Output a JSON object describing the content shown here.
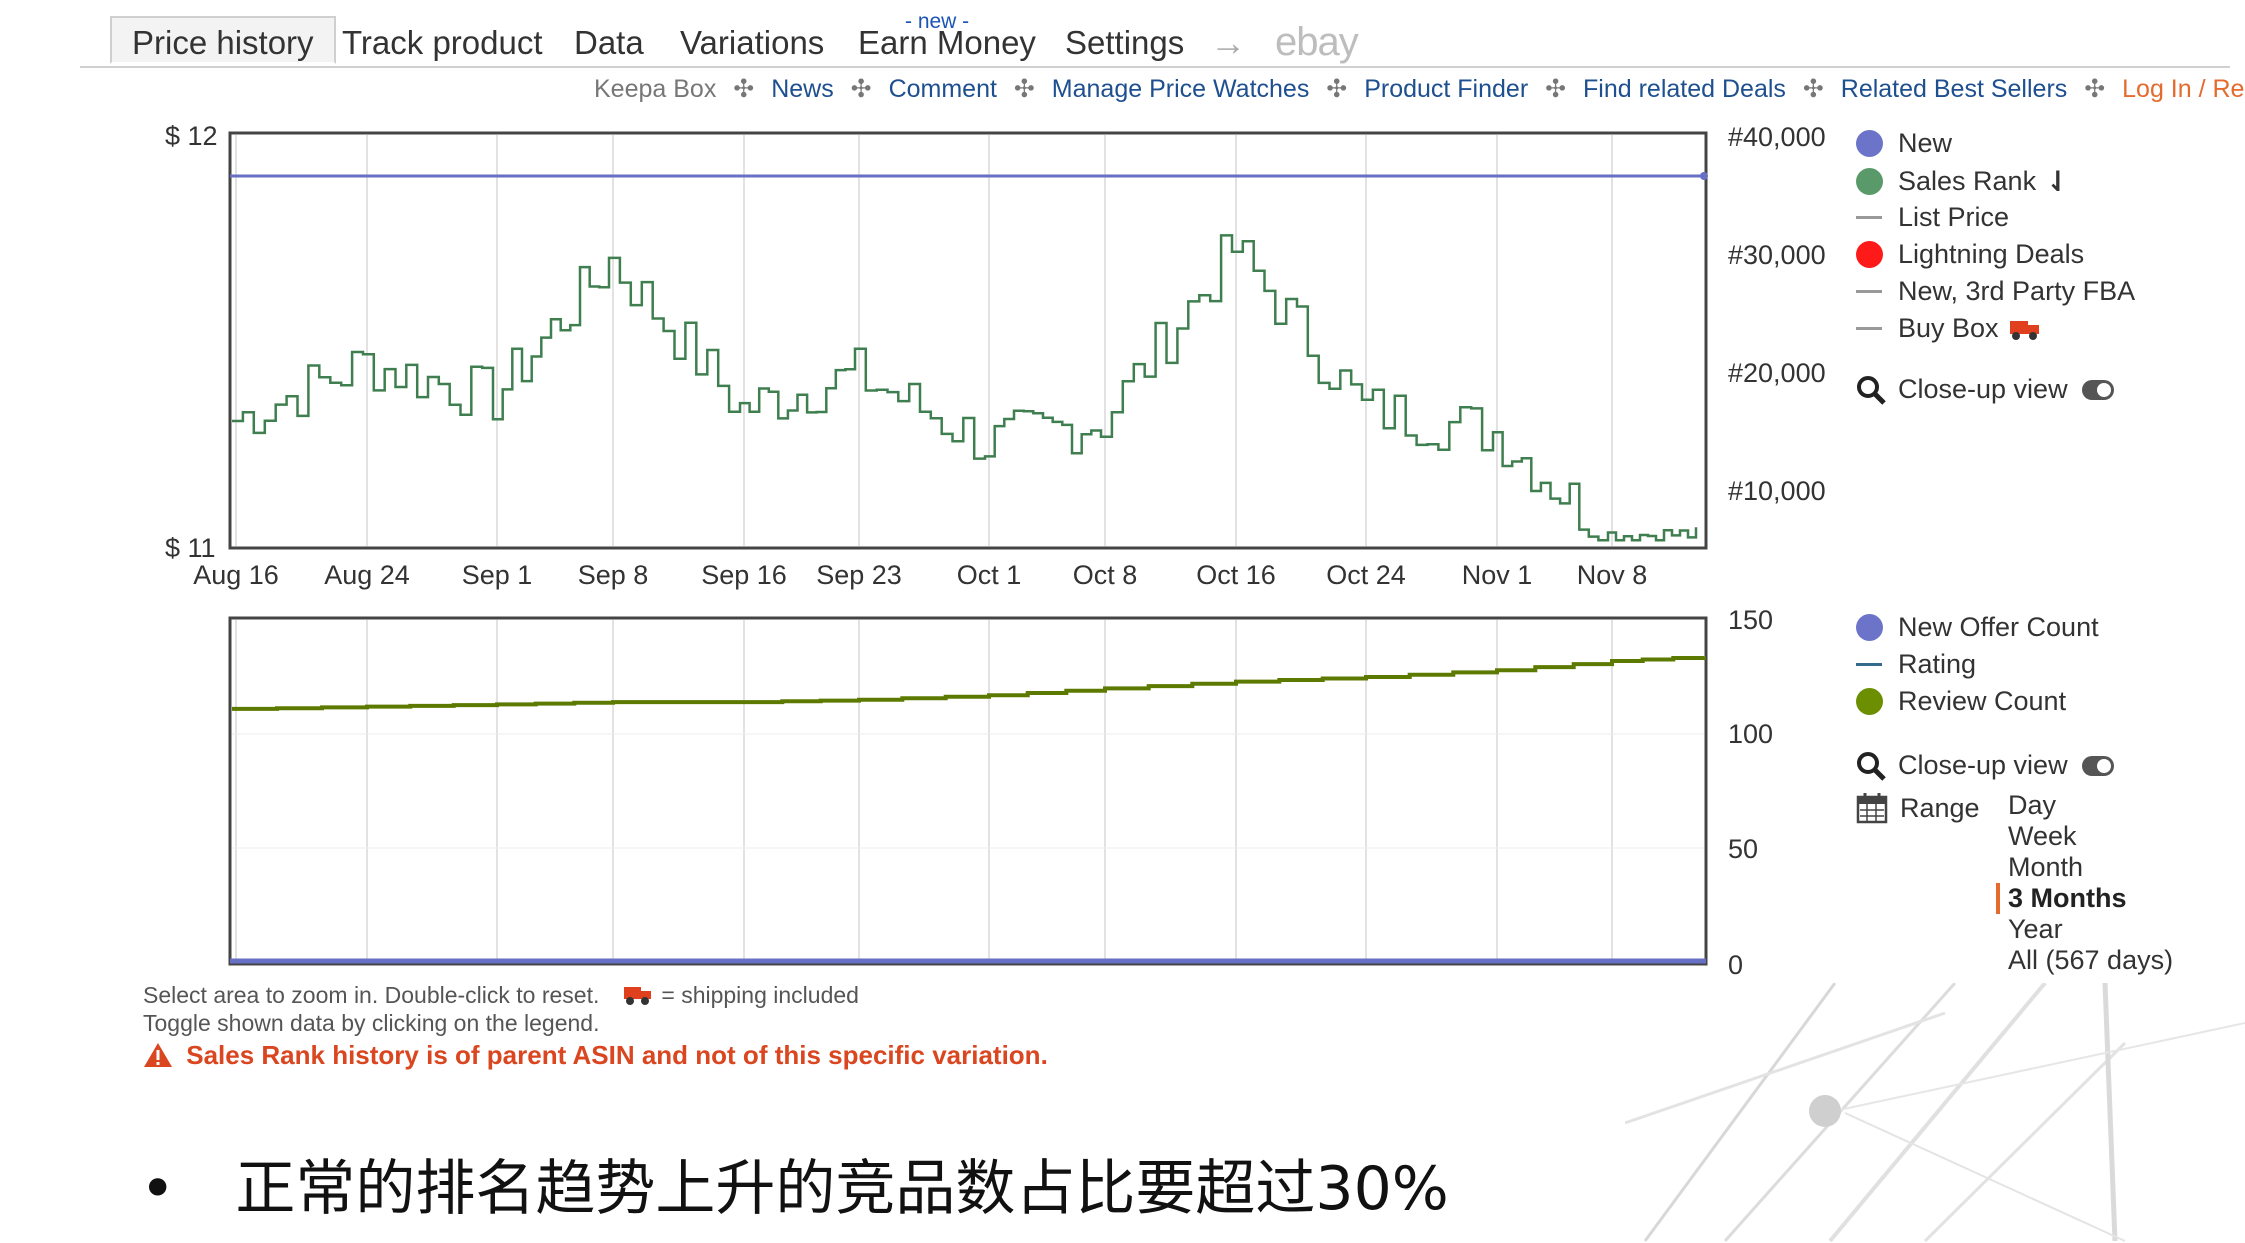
{
  "tabs": [
    {
      "label": "Price history",
      "active": true
    },
    {
      "label": "Track product"
    },
    {
      "label": "Data"
    },
    {
      "label": "Variations"
    },
    {
      "label": "Earn Money",
      "badge": "- new -"
    },
    {
      "label": "Settings"
    }
  ],
  "tab_arrow": "→",
  "tab_ebay": "ebay",
  "subnav": {
    "keepa_box": "Keepa Box",
    "news": "News",
    "comment": "Comment",
    "manage": "Manage Price Watches",
    "finder": "Product Finder",
    "deals": "Find related Deals",
    "best": "Related Best Sellers",
    "login": "Log In / Register",
    "separator": "✣"
  },
  "price_chart": {
    "y_left_top": "$ 12",
    "y_left_bottom": "$ 11",
    "y_right": [
      "#40,000",
      "#30,000",
      "#20,000",
      "#10,000"
    ],
    "x_ticks": [
      "Aug 16",
      "Aug 24",
      "Sep 1",
      "Sep 8",
      "Sep 16",
      "Sep 23",
      "Oct 1",
      "Oct 8",
      "Oct 16",
      "Oct 24",
      "Nov 1",
      "Nov 8"
    ],
    "legend": {
      "new": "New",
      "sales_rank": "Sales Rank",
      "sort_icon": "⇃",
      "list_price": "List Price",
      "lightning": "Lightning Deals",
      "fba": "New, 3rd Party FBA",
      "buy_box": "Buy Box",
      "closeup": "Close-up view"
    },
    "colors": {
      "new": "#6c74c9",
      "sales_rank": "#5a9a6a",
      "lightning": "#ff1a1a",
      "muted": "#999999",
      "new_line": "#6670c4",
      "rank_line": "#3f7f4f"
    }
  },
  "count_chart": {
    "y_right": [
      "150",
      "100",
      "50",
      "0"
    ],
    "legend": {
      "offer_count": "New Offer Count",
      "rating": "Rating",
      "review_count": "Review Count",
      "closeup": "Close-up view",
      "range": "Range"
    },
    "range_options": [
      "Day",
      "Week",
      "Month",
      "3 Months",
      "Year",
      "All (567 days)"
    ],
    "selected_range": "3 Months",
    "colors": {
      "offer": "#6c74c9",
      "rating": "#336b8a",
      "review": "#6b8f00",
      "review_line": "#5c7a00"
    }
  },
  "chart_data": [
    {
      "type": "line",
      "title": "",
      "x_labels": [
        "Aug 16",
        "Aug 24",
        "Sep 1",
        "Sep 8",
        "Sep 16",
        "Sep 23",
        "Oct 1",
        "Oct 8",
        "Oct 16",
        "Oct 24",
        "Nov 1",
        "Nov 8"
      ],
      "series": [
        {
          "name": "New",
          "axis": "left",
          "values": [
            11.9,
            11.9,
            11.9,
            11.9,
            11.9,
            11.9,
            11.9,
            11.9,
            11.9,
            11.9,
            11.9,
            11.9
          ]
        },
        {
          "name": "Sales Rank",
          "axis": "right",
          "values": [
            16000,
            21000,
            18000,
            30000,
            17000,
            20000,
            14000,
            16000,
            31000,
            17000,
            15000,
            6000
          ]
        }
      ],
      "ylim_left": [
        11,
        12
      ],
      "ylim_right": [
        5000,
        41000
      ]
    },
    {
      "type": "line",
      "title": "",
      "x_labels": [
        "Aug 16",
        "Aug 24",
        "Sep 1",
        "Sep 8",
        "Sep 16",
        "Sep 23",
        "Oct 1",
        "Oct 8",
        "Oct 16",
        "Oct 24",
        "Nov 1",
        "Nov 8"
      ],
      "series": [
        {
          "name": "Review Count",
          "values": [
            111,
            112,
            113,
            114,
            114,
            115,
            117,
            120,
            123,
            125,
            128,
            132
          ]
        },
        {
          "name": "New Offer Count",
          "values": [
            0,
            0,
            0,
            0,
            0,
            0,
            0,
            0,
            0,
            0,
            0,
            0
          ]
        }
      ],
      "ylim": [
        0,
        150
      ]
    }
  ],
  "notes": {
    "line1": "Select area to zoom in. Double-click to reset.",
    "shipping": "= shipping included",
    "line2": "Toggle shown data by clicking on the legend.",
    "warning": "Sales Rank history is of parent ASIN and not of this specific variation."
  },
  "slide": {
    "bullet": "•",
    "text": "正常的排名趋势上升的竞品数占比要超过30%"
  }
}
